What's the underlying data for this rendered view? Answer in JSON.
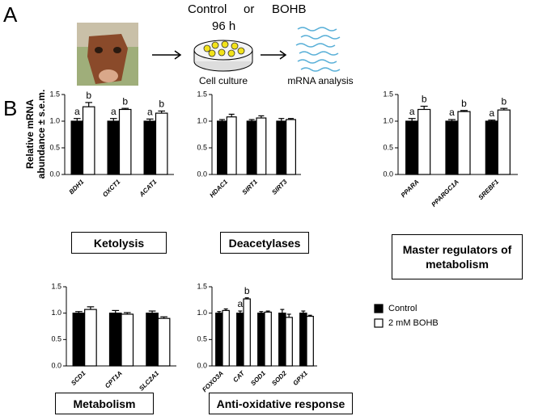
{
  "panel_labels": [
    "A",
    "B"
  ],
  "schematic": {
    "condition_1": "Control",
    "joiner": "or",
    "condition_2": "BOHB",
    "duration": "96 h",
    "step_1": "Cell culture",
    "step_2": "mRNA analysis"
  },
  "y_axis_label": [
    "Relative mRNA",
    "abundance ± s.e.m."
  ],
  "legend": {
    "series": [
      {
        "name": "Control",
        "color": "#000000"
      },
      {
        "name": "2 mM BOHB",
        "color": "#ffffff"
      }
    ]
  },
  "chart_data": [
    {
      "type": "bar",
      "title": "Ketolysis",
      "categories": [
        "BDH1",
        "OXCT1",
        "ACAT1"
      ],
      "ylim": [
        0,
        1.5
      ],
      "yticks": [
        {
          "value": 0,
          "label": "0.0"
        },
        0.5,
        {
          "value": 1,
          "label": "1.0"
        },
        1.5
      ],
      "series": [
        {
          "values": [
            1.0,
            1.0,
            1.0
          ],
          "errors": [
            0.05,
            0.05,
            0.04
          ],
          "letters": [
            "a",
            "a",
            "a"
          ]
        },
        {
          "values": [
            1.27,
            1.22,
            1.15
          ],
          "errors": [
            0.08,
            0.02,
            0.04
          ],
          "letters": [
            "b",
            "b",
            "b"
          ]
        }
      ]
    },
    {
      "type": "bar",
      "title": "Deacetylases",
      "categories": [
        "HDAC1",
        "SIRT1",
        "SIRT3"
      ],
      "ylim": [
        0,
        1.5
      ],
      "yticks": [
        {
          "value": 0,
          "label": "0.0"
        },
        0.5,
        {
          "value": 1,
          "label": "1.0"
        },
        1.5
      ],
      "series": [
        {
          "values": [
            1.0,
            1.0,
            1.0
          ],
          "errors": [
            0.03,
            0.03,
            0.05
          ]
        },
        {
          "values": [
            1.08,
            1.06,
            1.03
          ],
          "errors": [
            0.05,
            0.04,
            0.02
          ]
        }
      ]
    },
    {
      "type": "bar",
      "title": "Master regulators of metabolism",
      "categories": [
        "PPARA",
        "PPARGC1A",
        "SREBF1"
      ],
      "ylim": [
        0,
        1.5
      ],
      "yticks": [
        {
          "value": 0,
          "label": "0.0"
        },
        0.5,
        {
          "value": 1,
          "label": "1.0"
        },
        1.5
      ],
      "series": [
        {
          "values": [
            1.0,
            1.0,
            1.0
          ],
          "errors": [
            0.05,
            0.03,
            0.02
          ],
          "letters": [
            "a",
            "a",
            "a"
          ]
        },
        {
          "values": [
            1.22,
            1.18,
            1.21
          ],
          "errors": [
            0.06,
            0.02,
            0.03
          ],
          "letters": [
            "b",
            "b",
            "b"
          ]
        }
      ]
    },
    {
      "type": "bar",
      "title": "Metabolism",
      "categories": [
        "SCD1",
        "CPT1A",
        "SLC2A1"
      ],
      "ylim": [
        0,
        1.5
      ],
      "yticks": [
        {
          "value": 0,
          "label": "0.0"
        },
        0.5,
        {
          "value": 1,
          "label": "1.0"
        },
        1.5
      ],
      "series": [
        {
          "values": [
            1.0,
            1.0,
            1.0
          ],
          "errors": [
            0.03,
            0.05,
            0.04
          ]
        },
        {
          "values": [
            1.07,
            0.98,
            0.9
          ],
          "errors": [
            0.05,
            0.03,
            0.03
          ]
        }
      ]
    },
    {
      "type": "bar",
      "title": "Anti-oxidative response",
      "categories": [
        "FOXO3A",
        "CAT",
        "SOD1",
        "SOD2",
        "GPX1"
      ],
      "ylim": [
        0,
        1.5
      ],
      "yticks": [
        {
          "value": 0,
          "label": "0.0"
        },
        0.5,
        {
          "value": 1,
          "label": "1.0"
        },
        1.5
      ],
      "series": [
        {
          "values": [
            1.0,
            1.0,
            1.0,
            1.0,
            1.0
          ],
          "errors": [
            0.03,
            0.04,
            0.03,
            0.07,
            0.04
          ],
          "letters": [
            null,
            "a",
            null,
            null,
            null
          ]
        },
        {
          "values": [
            1.05,
            1.27,
            1.02,
            0.92,
            0.94
          ],
          "errors": [
            0.03,
            0.02,
            0.02,
            0.06,
            0.02
          ],
          "letters": [
            null,
            "b",
            null,
            null,
            null
          ]
        }
      ]
    }
  ]
}
